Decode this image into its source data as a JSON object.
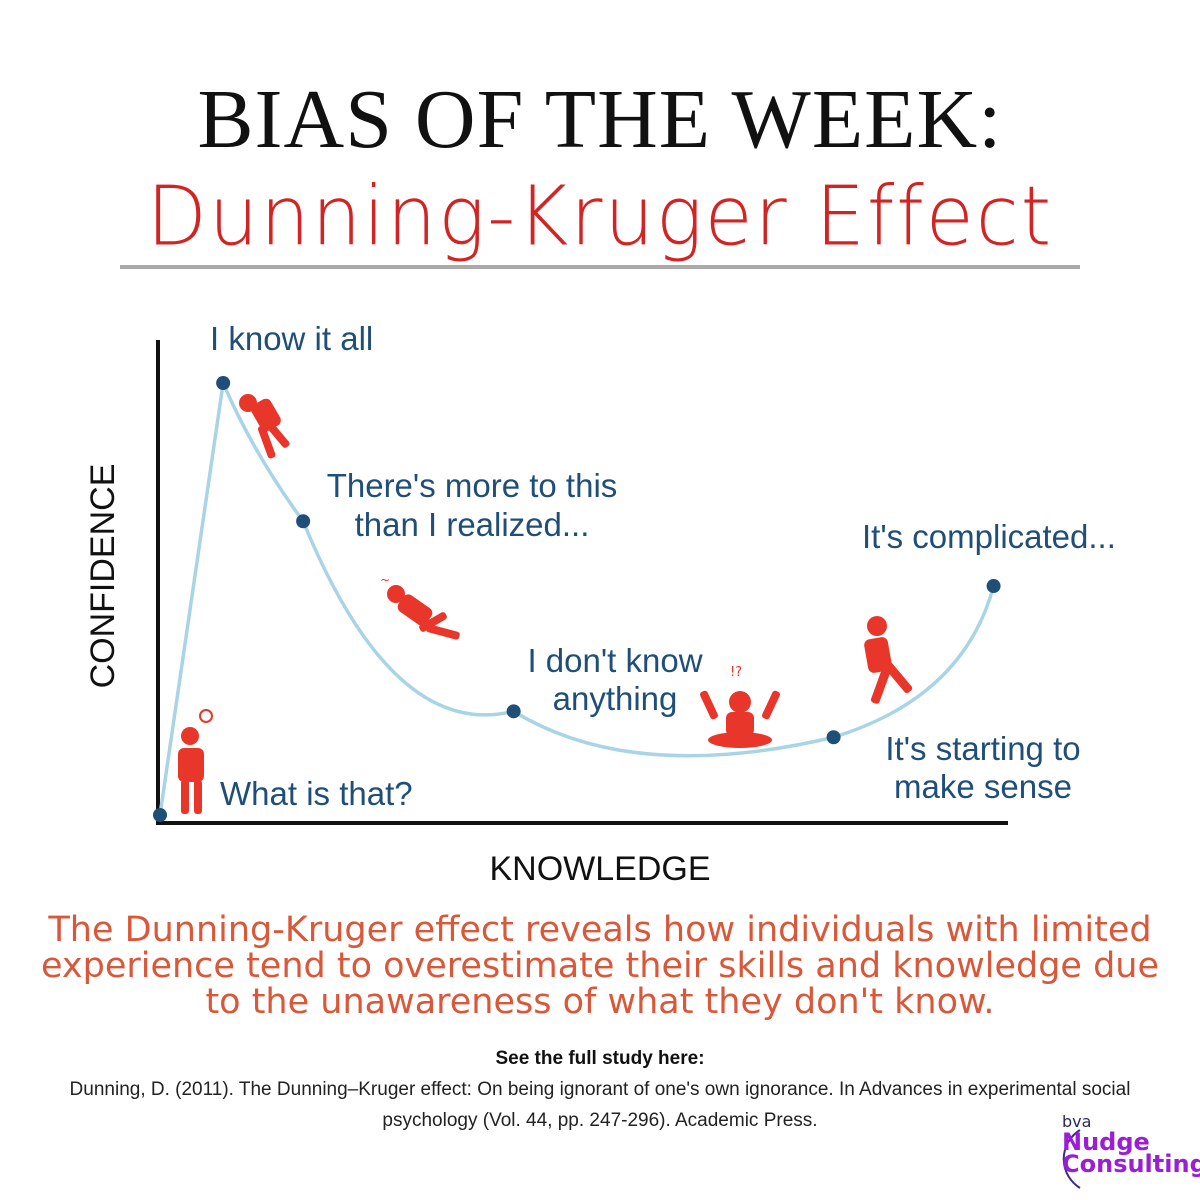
{
  "header": {
    "title": "BIAS OF THE WEEK:",
    "subtitle": "Dunning-Kruger Effect"
  },
  "chart_data": {
    "type": "line",
    "xlabel": "KNOWLEDGE",
    "ylabel": "CONFIDENCE",
    "stages": [
      {
        "label": "What is that?",
        "knowledge": 0,
        "confidence": 0
      },
      {
        "label": "I know it all",
        "knowledge": 7.5,
        "confidence": 100
      },
      {
        "label": "There's more to this than I realized...",
        "knowledge": 17,
        "confidence": 68
      },
      {
        "label": "I don't know anything",
        "knowledge": 42,
        "confidence": 24
      },
      {
        "label": "It's starting to make sense",
        "knowledge": 80,
        "confidence": 18
      },
      {
        "label": "It's complicated...",
        "knowledge": 99,
        "confidence": 53
      }
    ],
    "colors": {
      "curve": "#a9d4e6",
      "point": "#1f4e79",
      "figure": "#e8372a",
      "axis": "#111111"
    }
  },
  "summary": "The Dunning-Kruger effect reveals how individuals with limited experience tend to overestimate their skills and knowledge due to the unawareness of what they don't know.",
  "citation": {
    "heading": "See the full study here:",
    "text": "Dunning, D. (2011). The Dunning–Kruger effect: On being ignorant of one's own ignorance. In Advances in experimental social psychology (Vol. 44, pp. 247-296). Academic Press."
  },
  "logo": {
    "brand": "bva",
    "line1": "Nudge",
    "line2": "Consulting"
  }
}
